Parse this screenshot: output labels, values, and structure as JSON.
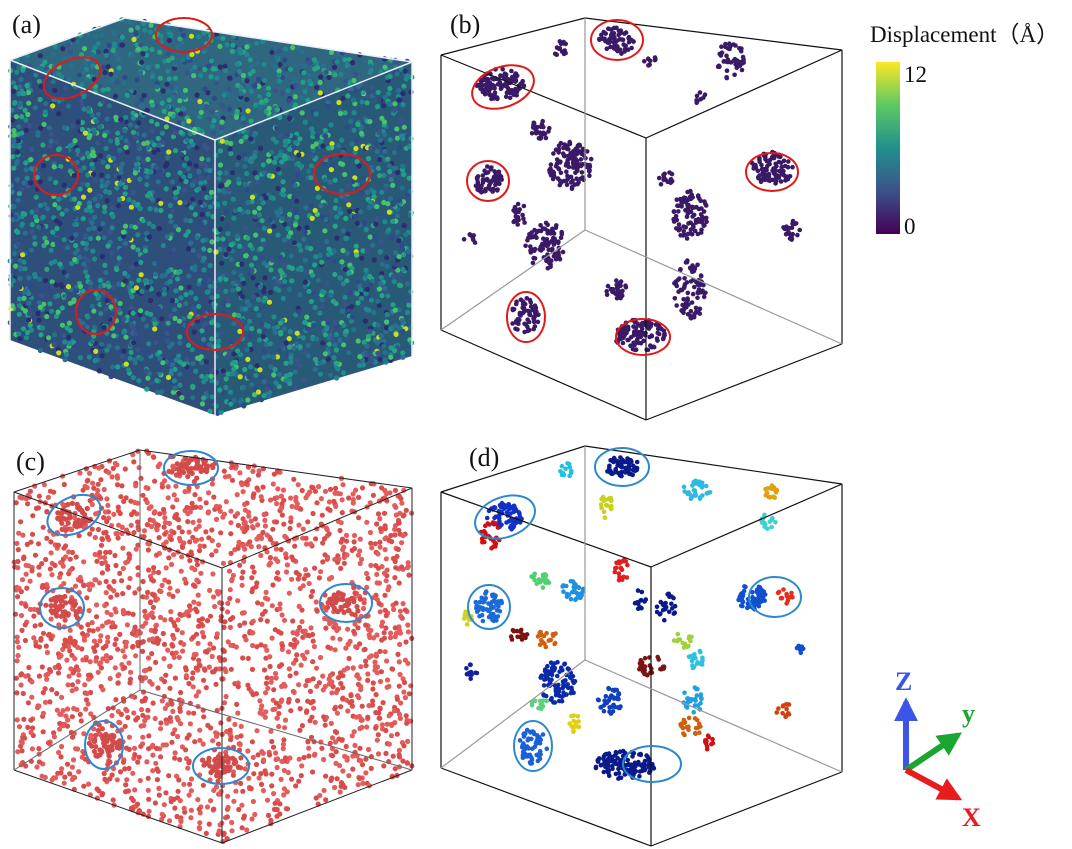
{
  "panels": {
    "a": {
      "label": "(a)"
    },
    "b": {
      "label": "(b)"
    },
    "c": {
      "label": "(c)"
    },
    "d": {
      "label": "(d)"
    }
  },
  "colorbar": {
    "title": "Displacement（Å）",
    "max_label": "12",
    "min_label": "0",
    "colormap": [
      "#440154",
      "#3b528b",
      "#21908c",
      "#5dc963",
      "#fde725"
    ]
  },
  "axes": {
    "z_label": "Z",
    "y_label": "y",
    "x_label": "X",
    "z_color": "#3a55e8",
    "y_color": "#1aa530",
    "x_color": "#e81c1c"
  },
  "colors": {
    "highlight_red": "#e01a1a",
    "highlight_blue": "#2e88d0",
    "atom_red": "#e35d5d",
    "cluster_purple": "#3a1a66"
  }
}
